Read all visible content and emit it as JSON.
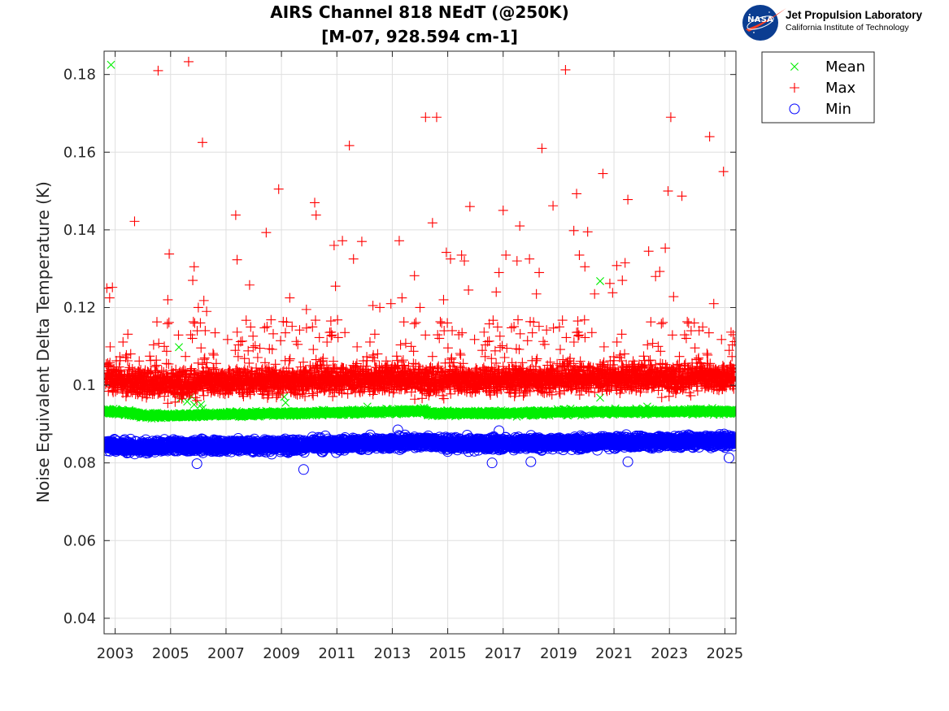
{
  "logo": {
    "nasa": "NASA",
    "org": "Jet Propulsion Laboratory",
    "sub": "California Institute of Technology"
  },
  "colors": {
    "mean": "#00ee00",
    "max": "#ff0000",
    "min": "#0000ff"
  },
  "chart_data": {
    "type": "scatter",
    "title": [
      "AIRS Channel 818 NEdT (@250K)",
      "[M-07, 928.594 cm-1]"
    ],
    "xlabel": "",
    "ylabel": "Noise Equivalent Delta Temperature (K)",
    "xlim": [
      2002.6,
      2025.4
    ],
    "ylim": [
      0.036,
      0.186
    ],
    "xticks": [
      2003,
      2005,
      2007,
      2009,
      2011,
      2013,
      2015,
      2017,
      2019,
      2021,
      2023,
      2025
    ],
    "yticks": [
      0.04,
      0.06,
      0.08,
      0.1,
      0.12,
      0.14,
      0.16,
      0.18
    ],
    "grid": true,
    "legend_position": "top-right, outside plot",
    "series": [
      {
        "name": "Mean",
        "marker": "x",
        "color": "#00ee00",
        "baseline": [
          [
            2002.65,
            0.0933
          ],
          [
            2003.6,
            0.0928
          ],
          [
            2004.0,
            0.0922
          ],
          [
            2005.5,
            0.0922
          ],
          [
            2006.5,
            0.0925
          ],
          [
            2009.0,
            0.0927
          ],
          [
            2011.0,
            0.093
          ],
          [
            2013.0,
            0.0932
          ],
          [
            2014.2,
            0.0934
          ],
          [
            2014.3,
            0.0928
          ],
          [
            2017.0,
            0.0928
          ],
          [
            2020.0,
            0.0931
          ],
          [
            2023.0,
            0.0932
          ],
          [
            2025.35,
            0.0932
          ]
        ],
        "spread": 0.0005,
        "outliers": [
          [
            2002.85,
            0.1825
          ],
          [
            2005.3,
            0.1098
          ],
          [
            2005.35,
            0.0965
          ],
          [
            2005.6,
            0.0958
          ],
          [
            2005.75,
            0.0972
          ],
          [
            2005.85,
            0.095
          ],
          [
            2006.1,
            0.095
          ],
          [
            2006.15,
            0.094
          ],
          [
            2009.1,
            0.097
          ],
          [
            2009.15,
            0.0955
          ],
          [
            2012.1,
            0.0945
          ],
          [
            2020.5,
            0.1268
          ],
          [
            2020.5,
            0.0968
          ],
          [
            2021.8,
            0.094
          ],
          [
            2022.2,
            0.0945
          ]
        ]
      },
      {
        "name": "Max",
        "marker": "+",
        "color": "#ff0000",
        "baseline": [
          [
            2002.65,
            0.102
          ],
          [
            2004.0,
            0.1005
          ],
          [
            2005.0,
            0.1005
          ],
          [
            2007.0,
            0.101
          ],
          [
            2009.0,
            0.1012
          ],
          [
            2011.0,
            0.1015
          ],
          [
            2013.0,
            0.1018
          ],
          [
            2015.0,
            0.1012
          ],
          [
            2017.0,
            0.1015
          ],
          [
            2019.0,
            0.1018
          ],
          [
            2021.0,
            0.102
          ],
          [
            2023.0,
            0.102
          ],
          [
            2025.35,
            0.102
          ]
        ],
        "spread": 0.0028,
        "scatter_range": [
          0.103,
          0.117
        ],
        "outliers": [
          [
            2002.7,
            0.125
          ],
          [
            2002.8,
            0.1225
          ],
          [
            2002.9,
            0.1252
          ],
          [
            2003.7,
            0.1422
          ],
          [
            2004.55,
            0.181
          ],
          [
            2004.95,
            0.1338
          ],
          [
            2004.9,
            0.122
          ],
          [
            2005.65,
            0.1833
          ],
          [
            2005.8,
            0.127
          ],
          [
            2005.85,
            0.1305
          ],
          [
            2006.0,
            0.12
          ],
          [
            2006.15,
            0.1625
          ],
          [
            2006.2,
            0.1218
          ],
          [
            2006.3,
            0.119
          ],
          [
            2007.35,
            0.1438
          ],
          [
            2007.4,
            0.1323
          ],
          [
            2007.85,
            0.1258
          ],
          [
            2008.45,
            0.1393
          ],
          [
            2008.9,
            0.1505
          ],
          [
            2009.3,
            0.1225
          ],
          [
            2009.9,
            0.1195
          ],
          [
            2010.2,
            0.147
          ],
          [
            2010.25,
            0.1438
          ],
          [
            2010.9,
            0.136
          ],
          [
            2010.95,
            0.1255
          ],
          [
            2011.2,
            0.1372
          ],
          [
            2011.45,
            0.1617
          ],
          [
            2011.6,
            0.1325
          ],
          [
            2011.9,
            0.137
          ],
          [
            2012.3,
            0.1205
          ],
          [
            2012.55,
            0.12
          ],
          [
            2013.25,
            0.1372
          ],
          [
            2013.35,
            0.1225
          ],
          [
            2013.8,
            0.1282
          ],
          [
            2014.0,
            0.12
          ],
          [
            2014.2,
            0.169
          ],
          [
            2014.6,
            0.169
          ],
          [
            2014.45,
            0.1418
          ],
          [
            2014.85,
            0.122
          ],
          [
            2014.95,
            0.1342
          ],
          [
            2015.1,
            0.1325
          ],
          [
            2015.5,
            0.1335
          ],
          [
            2015.6,
            0.132
          ],
          [
            2015.8,
            0.146
          ],
          [
            2015.75,
            0.1245
          ],
          [
            2016.5,
            0.1158
          ],
          [
            2016.75,
            0.124
          ],
          [
            2016.85,
            0.129
          ],
          [
            2017.0,
            0.145
          ],
          [
            2017.1,
            0.1335
          ],
          [
            2017.5,
            0.132
          ],
          [
            2017.6,
            0.141
          ],
          [
            2017.95,
            0.1325
          ],
          [
            2018.2,
            0.1235
          ],
          [
            2018.4,
            0.161
          ],
          [
            2018.8,
            0.1462
          ],
          [
            2019.25,
            0.1812
          ],
          [
            2019.55,
            0.1398
          ],
          [
            2019.65,
            0.1493
          ],
          [
            2019.75,
            0.1335
          ],
          [
            2019.95,
            0.1305
          ],
          [
            2020.05,
            0.1395
          ],
          [
            2020.3,
            0.1235
          ],
          [
            2020.6,
            0.1545
          ],
          [
            2020.85,
            0.1262
          ],
          [
            2020.95,
            0.1238
          ],
          [
            2021.1,
            0.1308
          ],
          [
            2021.3,
            0.127
          ],
          [
            2021.4,
            0.1315
          ],
          [
            2021.5,
            0.1478
          ],
          [
            2022.25,
            0.1345
          ],
          [
            2022.5,
            0.128
          ],
          [
            2022.65,
            0.1293
          ],
          [
            2022.85,
            0.1353
          ],
          [
            2022.95,
            0.15
          ],
          [
            2023.05,
            0.169
          ],
          [
            2023.15,
            0.1228
          ],
          [
            2023.45,
            0.1487
          ],
          [
            2024.45,
            0.164
          ],
          [
            2024.6,
            0.121
          ],
          [
            2024.95,
            0.155
          ],
          [
            2025.3,
            0.113
          ],
          [
            2018.3,
            0.129
          ],
          [
            2012.95,
            0.121
          ],
          [
            2015.4,
            0.113
          ],
          [
            2024.2,
            0.115
          ]
        ]
      },
      {
        "name": "Min",
        "marker": "o",
        "color": "#0000ff",
        "baseline": [
          [
            2002.65,
            0.0845
          ],
          [
            2004.0,
            0.084
          ],
          [
            2005.0,
            0.0843
          ],
          [
            2007.0,
            0.0845
          ],
          [
            2009.0,
            0.0845
          ],
          [
            2011.0,
            0.0848
          ],
          [
            2013.0,
            0.0852
          ],
          [
            2014.2,
            0.0855
          ],
          [
            2015.0,
            0.0848
          ],
          [
            2017.0,
            0.085
          ],
          [
            2019.0,
            0.0852
          ],
          [
            2021.0,
            0.0853
          ],
          [
            2023.0,
            0.0855
          ],
          [
            2025.35,
            0.0858
          ]
        ],
        "spread": 0.0012,
        "outliers": [
          [
            2005.95,
            0.0798
          ],
          [
            2009.8,
            0.0783
          ],
          [
            2013.2,
            0.0885
          ],
          [
            2016.85,
            0.0883
          ],
          [
            2016.6,
            0.08
          ],
          [
            2018.0,
            0.0803
          ],
          [
            2025.15,
            0.0813
          ],
          [
            2021.5,
            0.0803
          ]
        ]
      }
    ]
  }
}
